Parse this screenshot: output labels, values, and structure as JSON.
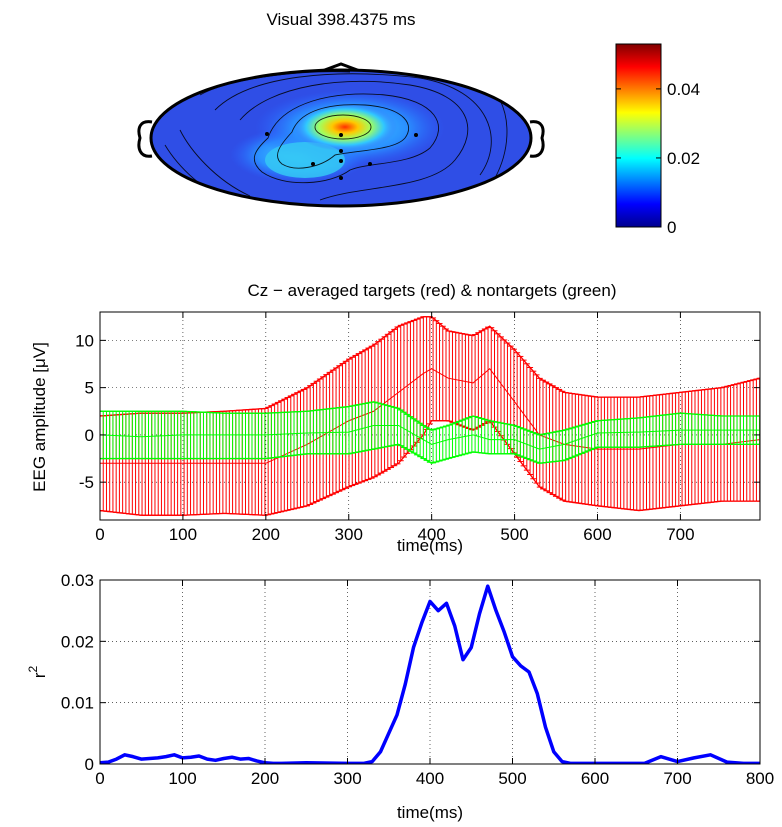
{
  "chart_data": [
    {
      "type": "heatmap",
      "title": "Visual 398.4375 ms",
      "colorbar": {
        "ticks": [
          0,
          0.02,
          0.04
        ],
        "tick_labels": [
          "0",
          "0.02",
          "0.04"
        ],
        "range": [
          0,
          0.053
        ],
        "colormap": "jet"
      },
      "electrodes": 8
    },
    {
      "type": "line",
      "title": "Cz − averaged targets (red) & nontargets (green)",
      "xlabel": "time(ms)",
      "ylabel": "EEG amplitude [μV]",
      "xlim": [
        0,
        796
      ],
      "ylim": [
        -9,
        13
      ],
      "xticks": [
        0,
        100,
        200,
        300,
        400,
        500,
        600,
        700
      ],
      "yticks": [
        -5,
        0,
        5,
        10
      ],
      "grid": true,
      "error_bars": true,
      "x": [
        0,
        50,
        100,
        150,
        200,
        250,
        300,
        330,
        360,
        390,
        400,
        420,
        450,
        470,
        500,
        530,
        560,
        600,
        650,
        700,
        750,
        796
      ],
      "series": [
        {
          "color": "#ff0000",
          "mean": [
            -3,
            -3,
            -3,
            -3,
            -3,
            -1,
            1.5,
            2.5,
            4.5,
            6.5,
            7,
            6,
            5.5,
            7,
            3.5,
            0,
            -1,
            -1.5,
            -1.5,
            -1,
            -1,
            -0.5
          ],
          "upper": [
            2,
            2.3,
            2.3,
            2.5,
            2.8,
            5,
            8,
            9.5,
            11.5,
            12.5,
            12.5,
            11,
            10.5,
            11.5,
            9,
            6,
            4.5,
            4,
            4,
            4.5,
            5,
            6
          ],
          "lower": [
            -8,
            -8.5,
            -8.5,
            -8.3,
            -8.5,
            -7.5,
            -5.5,
            -4.5,
            -3,
            0,
            1.5,
            1.5,
            0.5,
            1.5,
            -2,
            -5.5,
            -7,
            -7.5,
            -8,
            -7.5,
            -7,
            -7
          ]
        },
        {
          "color": "#00ff00",
          "mean": [
            0,
            -0.2,
            0,
            0,
            0,
            0.2,
            0.3,
            1,
            1,
            -0.5,
            -1,
            -0.5,
            0,
            -0.5,
            -0.5,
            -1.5,
            -1,
            0.2,
            0.3,
            0.5,
            0.5,
            0.5
          ],
          "upper": [
            2.5,
            2.5,
            2.5,
            2.3,
            2.3,
            2.5,
            3,
            3.5,
            2.8,
            1,
            0.5,
            1,
            2,
            1.5,
            1,
            0,
            0.5,
            1.5,
            1.8,
            2.3,
            2,
            2
          ],
          "lower": [
            -2.5,
            -2.5,
            -2.5,
            -2.5,
            -2.5,
            -2,
            -2,
            -1.5,
            -1,
            -2.5,
            -3,
            -2.5,
            -1.8,
            -2,
            -2,
            -3,
            -2.7,
            -1.3,
            -1.3,
            -1,
            -1,
            -1
          ]
        }
      ]
    },
    {
      "type": "line",
      "title": "",
      "xlabel": "time(ms)",
      "ylabel": "r",
      "ylabel_sup": "2",
      "xlim": [
        0,
        800
      ],
      "ylim": [
        0,
        0.03
      ],
      "xticks": [
        0,
        100,
        200,
        300,
        400,
        500,
        600,
        700,
        800
      ],
      "yticks": [
        0,
        0.01,
        0.02,
        0.03
      ],
      "ytick_labels": [
        "0",
        "0.01",
        "0.02",
        "0.03"
      ],
      "grid": true,
      "series": [
        {
          "color": "#0000ff",
          "x": [
            0,
            10,
            20,
            30,
            40,
            50,
            60,
            70,
            80,
            90,
            100,
            110,
            120,
            130,
            140,
            150,
            160,
            170,
            180,
            190,
            200,
            210,
            220,
            250,
            300,
            320,
            330,
            340,
            350,
            360,
            370,
            380,
            390,
            400,
            410,
            420,
            430,
            440,
            450,
            460,
            470,
            480,
            490,
            500,
            510,
            520,
            530,
            540,
            550,
            560,
            570,
            600,
            660,
            680,
            700,
            720,
            740,
            760,
            780,
            800
          ],
          "values": [
            0.0002,
            0.0003,
            0.0008,
            0.0015,
            0.0012,
            0.0008,
            0.0009,
            0.001,
            0.0012,
            0.0015,
            0.001,
            0.0011,
            0.0013,
            0.0008,
            0.0006,
            0.0009,
            0.0011,
            0.0008,
            0.0009,
            0.0005,
            0.0002,
            0.0001,
            0.0001,
            0.0002,
            0.0001,
            0.0001,
            0.0004,
            0.002,
            0.005,
            0.008,
            0.013,
            0.019,
            0.023,
            0.0265,
            0.025,
            0.0262,
            0.0225,
            0.017,
            0.019,
            0.0245,
            0.029,
            0.025,
            0.0215,
            0.0175,
            0.016,
            0.015,
            0.0115,
            0.006,
            0.002,
            0.0004,
            0.0001,
            0.0001,
            0.0001,
            0.0012,
            0.0004,
            0.001,
            0.0015,
            0.0003,
            0.0001,
            0.0001
          ]
        }
      ]
    }
  ]
}
